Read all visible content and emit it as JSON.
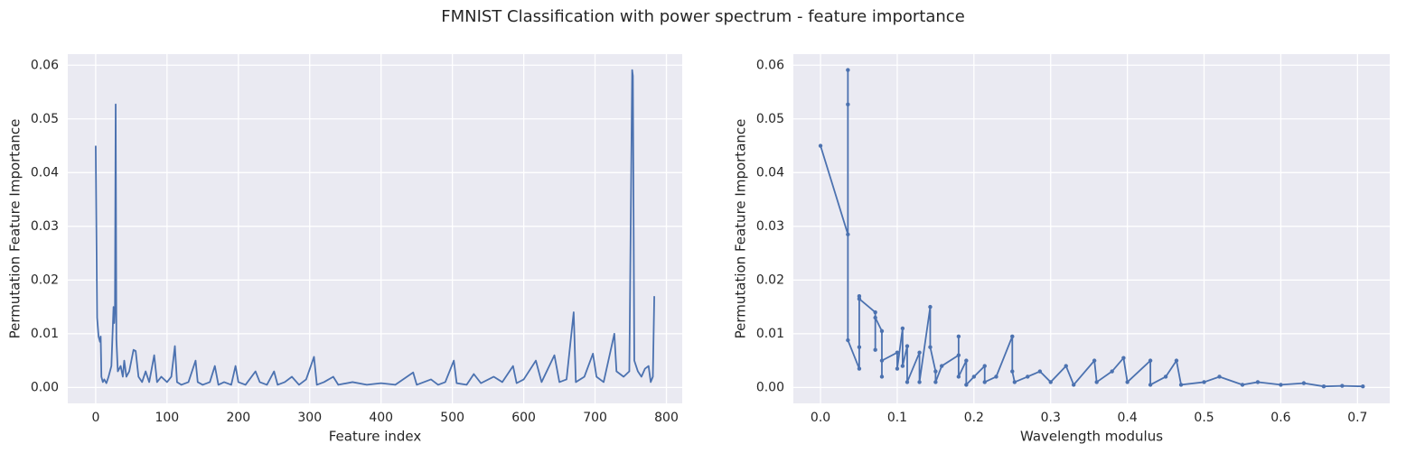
{
  "title": "FMNIST Classification with power spectrum - feature importance",
  "chart_data": [
    {
      "type": "line",
      "xlabel": "Feature index",
      "ylabel": "Permutation Feature Importance",
      "color": "#4c72b0",
      "markers": false,
      "grid": true,
      "xlim": [
        -39.15,
        822.15
      ],
      "ylim": [
        -0.00296,
        0.06206
      ],
      "xticks": [
        0,
        100,
        200,
        300,
        400,
        500,
        600,
        700,
        800
      ],
      "yticks": [
        {
          "value": 0,
          "label": "0.00"
        },
        {
          "value": 0.01,
          "label": "0.01"
        },
        {
          "value": 0.02,
          "label": "0.02"
        },
        {
          "value": 0.03,
          "label": "0.03"
        },
        {
          "value": 0.04,
          "label": "0.04"
        },
        {
          "value": 0.05,
          "label": "0.05"
        },
        {
          "value": 0.06,
          "label": "0.06"
        }
      ],
      "x": [
        0,
        2,
        4,
        6,
        7,
        8,
        10,
        12,
        15,
        18,
        22,
        25,
        26,
        27,
        28,
        29,
        31,
        35,
        38,
        40,
        43,
        47,
        50,
        53,
        56,
        60,
        65,
        70,
        75,
        82,
        86,
        92,
        100,
        106,
        111,
        114,
        120,
        130,
        140,
        143,
        150,
        160,
        167,
        172,
        180,
        190,
        196,
        200,
        210,
        224,
        230,
        240,
        250,
        255,
        265,
        275,
        285,
        295,
        306,
        310,
        320,
        333,
        340,
        360,
        380,
        400,
        420,
        445,
        450,
        470,
        480,
        490,
        502,
        506,
        520,
        530,
        540,
        558,
        570,
        585,
        590,
        600,
        617,
        625,
        643,
        650,
        660,
        670,
        673,
        685,
        697,
        702,
        712,
        727,
        730,
        740,
        748,
        752,
        753,
        755,
        760,
        765,
        770,
        775,
        778,
        781,
        783
      ],
      "values": [
        0.045,
        0.013,
        0.0095,
        0.0085,
        0.0095,
        0.002,
        0.001,
        0.0015,
        0.0008,
        0.002,
        0.004,
        0.015,
        0.012,
        0.015,
        0.0527,
        0.009,
        0.003,
        0.004,
        0.002,
        0.005,
        0.002,
        0.003,
        0.005,
        0.007,
        0.0068,
        0.002,
        0.001,
        0.003,
        0.001,
        0.006,
        0.001,
        0.002,
        0.001,
        0.002,
        0.0077,
        0.001,
        0.0005,
        0.001,
        0.005,
        0.001,
        0.0005,
        0.001,
        0.004,
        0.0005,
        0.001,
        0.0005,
        0.004,
        0.001,
        0.0005,
        0.003,
        0.001,
        0.0005,
        0.003,
        0.0005,
        0.001,
        0.002,
        0.0005,
        0.0015,
        0.0057,
        0.0005,
        0.001,
        0.002,
        0.0005,
        0.001,
        0.0005,
        0.0008,
        0.0005,
        0.0028,
        0.0005,
        0.0015,
        0.0005,
        0.001,
        0.005,
        0.0008,
        0.0005,
        0.0025,
        0.0008,
        0.002,
        0.001,
        0.004,
        0.0008,
        0.0015,
        0.005,
        0.001,
        0.006,
        0.001,
        0.0015,
        0.014,
        0.001,
        0.002,
        0.0063,
        0.002,
        0.001,
        0.01,
        0.003,
        0.002,
        0.003,
        0.0591,
        0.058,
        0.005,
        0.003,
        0.002,
        0.0035,
        0.004,
        0.001,
        0.002,
        0.017
      ]
    },
    {
      "type": "line",
      "xlabel": "Wavelength modulus",
      "ylabel": "Permutation Feature Importance",
      "color": "#4c72b0",
      "markers": true,
      "grid": true,
      "xlim": [
        -0.0354,
        0.742
      ],
      "ylim": [
        -0.00296,
        0.06206
      ],
      "xticks": [
        {
          "value": 0,
          "label": "0.0"
        },
        0.1,
        0.2,
        0.3,
        0.4,
        0.5,
        0.6,
        0.7
      ],
      "yticks": [
        {
          "value": 0,
          "label": "0.00"
        },
        {
          "value": 0.01,
          "label": "0.01"
        },
        {
          "value": 0.02,
          "label": "0.02"
        },
        {
          "value": 0.03,
          "label": "0.03"
        },
        {
          "value": 0.04,
          "label": "0.04"
        },
        {
          "value": 0.05,
          "label": "0.05"
        },
        {
          "value": 0.06,
          "label": "0.06"
        }
      ],
      "x": [
        0,
        0.0357,
        0.0357,
        0.0357,
        0.0357,
        0.0505,
        0.0505,
        0.0505,
        0.0505,
        0.0714,
        0.0714,
        0.0714,
        0.08,
        0.08,
        0.08,
        0.1,
        0.1,
        0.107,
        0.107,
        0.113,
        0.113,
        0.129,
        0.129,
        0.143,
        0.143,
        0.15,
        0.15,
        0.158,
        0.18,
        0.18,
        0.18,
        0.19,
        0.19,
        0.2,
        0.214,
        0.214,
        0.229,
        0.25,
        0.25,
        0.253,
        0.27,
        0.286,
        0.3,
        0.32,
        0.33,
        0.357,
        0.36,
        0.38,
        0.395,
        0.4,
        0.43,
        0.43,
        0.45,
        0.464,
        0.47,
        0.5,
        0.52,
        0.55,
        0.57,
        0.6,
        0.63,
        0.656,
        0.68,
        0.707
      ],
      "values": [
        0.045,
        0.0285,
        0.0591,
        0.0527,
        0.0088,
        0.0035,
        0.017,
        0.0075,
        0.0165,
        0.014,
        0.007,
        0.013,
        0.0105,
        0.002,
        0.005,
        0.0065,
        0.0035,
        0.011,
        0.004,
        0.0077,
        0.001,
        0.0065,
        0.001,
        0.015,
        0.0075,
        0.003,
        0.001,
        0.004,
        0.006,
        0.0095,
        0.002,
        0.005,
        0.0005,
        0.002,
        0.004,
        0.001,
        0.002,
        0.0095,
        0.003,
        0.001,
        0.002,
        0.003,
        0.001,
        0.004,
        0.0005,
        0.005,
        0.001,
        0.003,
        0.0055,
        0.001,
        0.005,
        0.0005,
        0.002,
        0.005,
        0.0005,
        0.001,
        0.002,
        0.0005,
        0.001,
        0.0005,
        0.0008,
        0.0002,
        0.0003,
        0.0002
      ]
    }
  ]
}
